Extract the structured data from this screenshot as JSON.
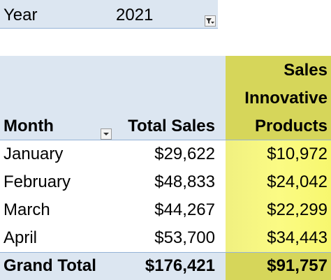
{
  "filter": {
    "label": "Year",
    "value": "2021"
  },
  "headers": {
    "month": "Month",
    "total_sales": "Total Sales",
    "innovative_line1": "Sales",
    "innovative_line2": "Innovative",
    "innovative_line3": "Products"
  },
  "rows": [
    {
      "month": "January",
      "total": "$29,622",
      "innovative": "$10,972"
    },
    {
      "month": "February",
      "total": "$48,833",
      "innovative": "$24,042"
    },
    {
      "month": "March",
      "total": "$44,267",
      "innovative": "$22,299"
    },
    {
      "month": "April",
      "total": "$53,700",
      "innovative": "$34,443"
    }
  ],
  "grand_total": {
    "label": "Grand Total",
    "total": "$176,421",
    "innovative": "$91,757"
  },
  "icons": {
    "filter_button": "filter-icon",
    "month_dropdown": "dropdown-arrow-icon"
  },
  "colors": {
    "header_blue": "#dce6f1",
    "header_yellow": "#d6d65a",
    "highlight_yellow": "#fbfb84",
    "border_blue": "#95b3d7"
  }
}
